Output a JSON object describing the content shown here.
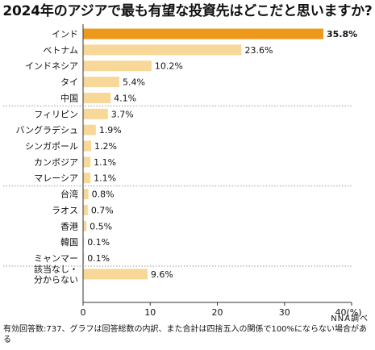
{
  "chart_data": {
    "type": "bar",
    "orientation": "horizontal",
    "title": "2024年のアジアで最も有望な投資先はどこだと思いますか?",
    "categories": [
      "インド",
      "ベトナム",
      "インドネシア",
      "タイ",
      "中国",
      "フィリピン",
      "バングラデシュ",
      "シンガポール",
      "カンボジア",
      "マレーシア",
      "台湾",
      "ラオス",
      "香港",
      "韓国",
      "ミャンマー",
      "該当なし・分からない"
    ],
    "category_lines": [
      [
        "インド"
      ],
      [
        "ベトナム"
      ],
      [
        "インドネシア"
      ],
      [
        "タイ"
      ],
      [
        "中国"
      ],
      [
        "フィリピン"
      ],
      [
        "バングラデシュ"
      ],
      [
        "シンガポール"
      ],
      [
        "カンボジア"
      ],
      [
        "マレーシア"
      ],
      [
        "台湾"
      ],
      [
        "ラオス"
      ],
      [
        "香港"
      ],
      [
        "韓国"
      ],
      [
        "ミャンマー"
      ],
      [
        "該当なし・",
        "分からない"
      ]
    ],
    "values": [
      35.8,
      23.6,
      10.2,
      5.4,
      4.1,
      3.7,
      1.9,
      1.2,
      1.1,
      1.1,
      0.8,
      0.7,
      0.5,
      0.1,
      0.1,
      9.6
    ],
    "value_labels": [
      "35.8%",
      "23.6%",
      "10.2%",
      "5.4%",
      "4.1%",
      "3.7%",
      "1.9%",
      "1.2%",
      "1.1%",
      "1.1%",
      "0.8%",
      "0.7%",
      "0.5%",
      "0.1%",
      "0.1%",
      "9.6%"
    ],
    "xlim": [
      0,
      40
    ],
    "xticks": [
      0,
      10,
      20,
      30,
      40
    ],
    "xtick_labels": [
      "0",
      "10",
      "20",
      "30",
      "40(%)"
    ],
    "highlight_index": 0,
    "group_breaks_after": [
      4,
      9,
      14
    ],
    "colors": {
      "highlight": "#ED9A1C",
      "bar": "#F8D898",
      "axis": "#333333",
      "separator": "#999999"
    },
    "grid": false
  },
  "footnote": "有効回答数:737、グラフは回答総数の内訳、また合計は四捨五入の関係で100%にならない場合がある",
  "source": "NNA調べ"
}
